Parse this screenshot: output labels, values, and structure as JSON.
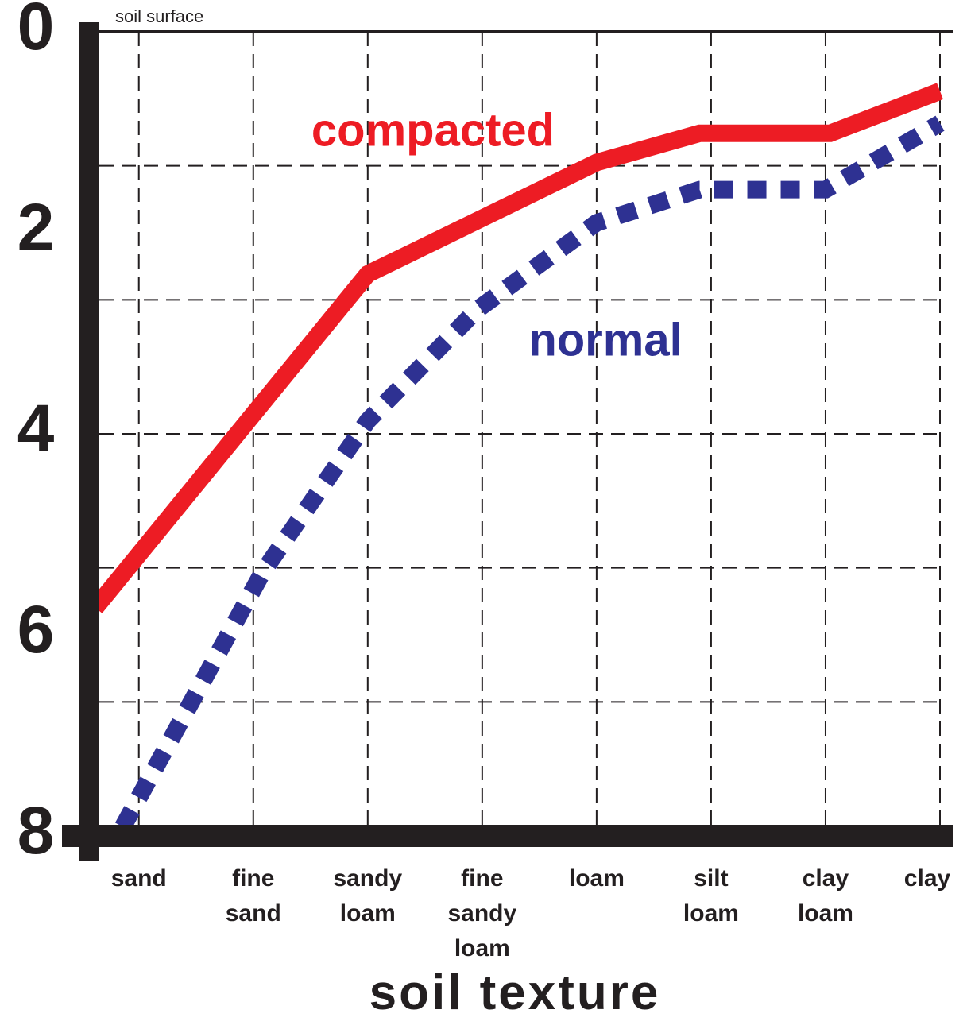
{
  "chart_data": {
    "type": "line",
    "top_label": "soil surface",
    "xlabel": "soil texture",
    "categories": [
      "sand",
      "fine sand",
      "sandy loam",
      "fine sandy loam",
      "loam",
      "silt loam",
      "clay loam",
      "clay"
    ],
    "xlim": [
      0.62,
      8
    ],
    "ylim": [
      0,
      8
    ],
    "inverted_y": true,
    "yticks": [
      0,
      2,
      4,
      6,
      8
    ],
    "ygrid": [
      1.333,
      2.667,
      4,
      5.333,
      6.667
    ],
    "grid": true,
    "series": [
      {
        "name": "compacted",
        "color": "#ed1c24",
        "style": "solid",
        "x": [
          0.62,
          3,
          5,
          5.9,
          7.04,
          8
        ],
        "values": [
          5.73,
          2.41,
          1.3,
          1.01,
          1.01,
          0.59
        ]
      },
      {
        "name": "normal",
        "color": "#2e3192",
        "style": "dotted",
        "x": [
          0.86,
          2.08,
          3,
          3.95,
          5,
          5.9,
          7,
          8
        ],
        "values": [
          7.91,
          5.38,
          3.87,
          2.77,
          1.9,
          1.57,
          1.57,
          0.91
        ]
      }
    ]
  }
}
